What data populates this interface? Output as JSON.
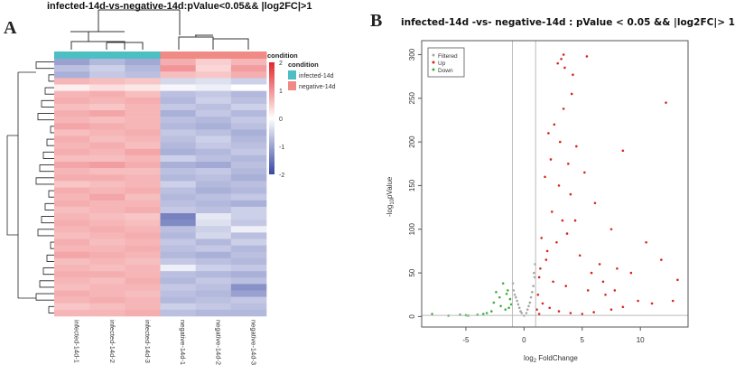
{
  "panels": {
    "a_label": "A",
    "b_label": "B"
  },
  "chart_data": [
    {
      "type": "heatmap",
      "title": "infected-14d-vs-negative-14d:pValue<0.05&& |log2FC|>1",
      "columns": [
        "infected-14d-1",
        "infected-14d-2",
        "infected-14d-3",
        "negative-14d-1",
        "negative-14d-2",
        "negative-14d-3"
      ],
      "column_conditions": [
        "infected-14d",
        "infected-14d",
        "infected-14d",
        "negative-14d",
        "negative-14d",
        "negative-14d"
      ],
      "annotation_title": "condition",
      "legend": {
        "title": "condition",
        "entries": [
          {
            "label": "infected-14d",
            "color": "#4DBFC3"
          },
          {
            "label": "negative-14d",
            "color": "#F08A84"
          }
        ]
      },
      "color_scale": {
        "min": -2,
        "max": 2,
        "ticks": [
          2,
          1,
          0,
          -1,
          -2
        ],
        "low": "#3847A3",
        "mid": "#FFFFFF",
        "high": "#E3262B"
      },
      "rows": [
        [
          -1.2,
          -0.9,
          -1.1,
          1.0,
          0.6,
          0.9
        ],
        [
          -0.8,
          -0.6,
          -0.9,
          1.3,
          0.5,
          1.2
        ],
        [
          -1.0,
          -0.7,
          -0.8,
          0.8,
          0.7,
          1.0
        ],
        [
          0.9,
          0.8,
          0.7,
          -0.5,
          -0.4,
          -0.6
        ],
        [
          0.2,
          0.4,
          0.3,
          -0.1,
          -0.2,
          0.0
        ],
        [
          0.9,
          1.0,
          0.8,
          -0.8,
          -0.7,
          -0.9
        ],
        [
          1.0,
          0.9,
          1.0,
          -0.9,
          -0.6,
          -0.8
        ],
        [
          0.8,
          0.7,
          0.9,
          -0.7,
          -0.8,
          -0.6
        ],
        [
          1.0,
          1.1,
          0.9,
          -1.0,
          -0.7,
          -0.9
        ],
        [
          0.9,
          0.8,
          0.9,
          -0.8,
          -0.9,
          -0.7
        ],
        [
          1.1,
          1.0,
          0.9,
          -0.9,
          -1.0,
          -0.8
        ],
        [
          0.8,
          0.9,
          1.0,
          -0.7,
          -0.8,
          -1.0
        ],
        [
          1.0,
          0.8,
          0.9,
          -0.8,
          -0.6,
          -0.9
        ],
        [
          0.9,
          1.0,
          0.8,
          -0.9,
          -0.7,
          -0.8
        ],
        [
          1.0,
          0.9,
          1.1,
          -1.0,
          -0.9,
          -0.7
        ],
        [
          0.8,
          0.8,
          0.9,
          -0.6,
          -0.8,
          -0.9
        ],
        [
          1.1,
          1.2,
          1.0,
          -1.0,
          -1.1,
          -0.8
        ],
        [
          0.9,
          0.8,
          0.8,
          -0.8,
          -0.7,
          -0.9
        ],
        [
          1.0,
          1.0,
          0.9,
          -0.9,
          -0.8,
          -1.0
        ],
        [
          0.7,
          0.8,
          0.9,
          -0.6,
          -0.9,
          -0.8
        ],
        [
          1.0,
          0.9,
          1.0,
          -0.8,
          -1.0,
          -0.9
        ],
        [
          0.9,
          1.1,
          0.8,
          -0.9,
          -0.8,
          -0.7
        ],
        [
          1.0,
          0.9,
          0.9,
          -0.8,
          -0.9,
          -1.0
        ],
        [
          0.8,
          0.9,
          1.0,
          -0.7,
          -0.8,
          -0.6
        ],
        [
          0.9,
          0.8,
          0.7,
          -1.6,
          -0.3,
          -0.6
        ],
        [
          1.0,
          0.9,
          0.8,
          -1.5,
          -0.4,
          -0.7
        ],
        [
          0.9,
          1.0,
          0.9,
          -0.8,
          -0.6,
          -0.2
        ],
        [
          0.8,
          0.9,
          1.0,
          -0.9,
          -0.5,
          -0.8
        ],
        [
          1.0,
          0.8,
          0.9,
          -0.7,
          -0.9,
          -0.6
        ],
        [
          0.9,
          0.9,
          1.0,
          -0.8,
          -0.7,
          -0.9
        ],
        [
          1.1,
          1.0,
          0.9,
          -0.9,
          -1.0,
          -0.8
        ],
        [
          0.8,
          0.9,
          0.8,
          -0.7,
          -0.8,
          -0.9
        ],
        [
          0.9,
          0.8,
          0.9,
          -0.2,
          -0.6,
          -0.7
        ],
        [
          1.0,
          1.0,
          0.9,
          -0.8,
          -0.9,
          -1.0
        ],
        [
          0.9,
          0.8,
          1.0,
          -0.9,
          -0.7,
          -0.8
        ],
        [
          0.8,
          0.9,
          0.9,
          -0.7,
          -0.8,
          -1.4
        ],
        [
          1.0,
          0.9,
          0.8,
          -0.8,
          -0.9,
          -1.2
        ],
        [
          0.9,
          1.0,
          0.9,
          -0.9,
          -0.8,
          -0.7
        ],
        [
          0.7,
          0.8,
          0.9,
          -0.6,
          -0.7,
          -0.8
        ],
        [
          0.9,
          0.9,
          1.0,
          -0.8,
          -0.9,
          -0.9
        ]
      ]
    },
    {
      "type": "scatter",
      "title": "infected-14d -vs- negative-14d : pValue < 0.05 && |log2FC|> 1",
      "xlabel": "log2 FoldChange",
      "xlabel_main": "log",
      "xlabel_sub": "2",
      "xlabel_rest": " FoldChange",
      "ylabel": "-log10pValue",
      "ylabel_main": "-log",
      "ylabel_sub": "10",
      "ylabel_rest": "pValue",
      "xlim": [
        -8.8,
        14.1
      ],
      "ylim": [
        -12,
        316
      ],
      "xticks": [
        -5,
        0,
        5,
        10
      ],
      "yticks": [
        0,
        50,
        100,
        150,
        200,
        250,
        300
      ],
      "vlines": [
        -1,
        1
      ],
      "hline": 1.3,
      "legend_position": "top-left",
      "series": [
        {
          "name": "Filtered",
          "color": "#A6A6A6",
          "points": [
            [
              -0.9,
              30
            ],
            [
              -0.8,
              25
            ],
            [
              -0.6,
              18
            ],
            [
              -0.4,
              10
            ],
            [
              -0.2,
              4
            ],
            [
              0,
              1
            ],
            [
              0.2,
              4
            ],
            [
              0.4,
              12
            ],
            [
              0.6,
              22
            ],
            [
              0.8,
              35
            ],
            [
              0.9,
              45
            ],
            [
              0.95,
              60
            ],
            [
              -0.95,
              38
            ],
            [
              0.7,
              28
            ],
            [
              -0.7,
              22
            ],
            [
              0.5,
              16
            ],
            [
              -0.5,
              14
            ],
            [
              0.3,
              8
            ],
            [
              -0.3,
              6
            ],
            [
              0.85,
              50
            ]
          ]
        },
        {
          "name": "Up",
          "color": "#D7261E",
          "points": [
            [
              2.9,
              290
            ],
            [
              3.2,
              295
            ],
            [
              3.4,
              300
            ],
            [
              5.4,
              298
            ],
            [
              3.5,
              285
            ],
            [
              4.2,
              277
            ],
            [
              4.1,
              255
            ],
            [
              12.2,
              245
            ],
            [
              2.1,
              210
            ],
            [
              3.4,
              238
            ],
            [
              2.6,
              220
            ],
            [
              3.1,
              200
            ],
            [
              4.5,
              195
            ],
            [
              8.5,
              190
            ],
            [
              2.3,
              180
            ],
            [
              3.8,
              175
            ],
            [
              5.2,
              165
            ],
            [
              1.8,
              160
            ],
            [
              3.0,
              150
            ],
            [
              4.0,
              140
            ],
            [
              6.1,
              130
            ],
            [
              2.4,
              120
            ],
            [
              3.3,
              110
            ],
            [
              7.5,
              100
            ],
            [
              10.5,
              85
            ],
            [
              11.8,
              65
            ],
            [
              1.5,
              90
            ],
            [
              2.0,
              75
            ],
            [
              4.8,
              70
            ],
            [
              6.5,
              60
            ],
            [
              8.0,
              55
            ],
            [
              9.2,
              50
            ],
            [
              1.3,
              45
            ],
            [
              2.5,
              40
            ],
            [
              3.6,
              35
            ],
            [
              5.5,
              30
            ],
            [
              7.0,
              25
            ],
            [
              9.8,
              18
            ],
            [
              11.0,
              15
            ],
            [
              12.8,
              18
            ],
            [
              13.2,
              42
            ],
            [
              1.2,
              25
            ],
            [
              1.6,
              15
            ],
            [
              2.2,
              10
            ],
            [
              3.0,
              6
            ],
            [
              4.0,
              4
            ],
            [
              5.0,
              3
            ],
            [
              6.0,
              5
            ],
            [
              7.5,
              8
            ],
            [
              8.5,
              11
            ],
            [
              1.4,
              55
            ],
            [
              1.9,
              65
            ],
            [
              2.8,
              85
            ],
            [
              3.7,
              95
            ],
            [
              4.4,
              110
            ],
            [
              5.8,
              50
            ],
            [
              6.8,
              40
            ],
            [
              7.8,
              30
            ],
            [
              1.1,
              8
            ],
            [
              1.3,
              3
            ]
          ]
        },
        {
          "name": "Down",
          "color": "#3FAE3F",
          "points": [
            [
              -1.8,
              38
            ],
            [
              -2.4,
              28
            ],
            [
              -2.1,
              22
            ],
            [
              -1.5,
              26
            ],
            [
              -1.2,
              20
            ],
            [
              -1.3,
              10
            ],
            [
              -1.6,
              8
            ],
            [
              -2.0,
              12
            ],
            [
              -2.8,
              6
            ],
            [
              -3.2,
              4
            ],
            [
              -4.0,
              2
            ],
            [
              -4.8,
              1
            ],
            [
              -5.5,
              2
            ],
            [
              -6.5,
              1
            ],
            [
              -7.9,
              3
            ],
            [
              -1.1,
              14
            ],
            [
              -1.4,
              30
            ],
            [
              -2.6,
              16
            ],
            [
              -3.5,
              3
            ],
            [
              -5.0,
              1.5
            ]
          ]
        }
      ]
    }
  ]
}
